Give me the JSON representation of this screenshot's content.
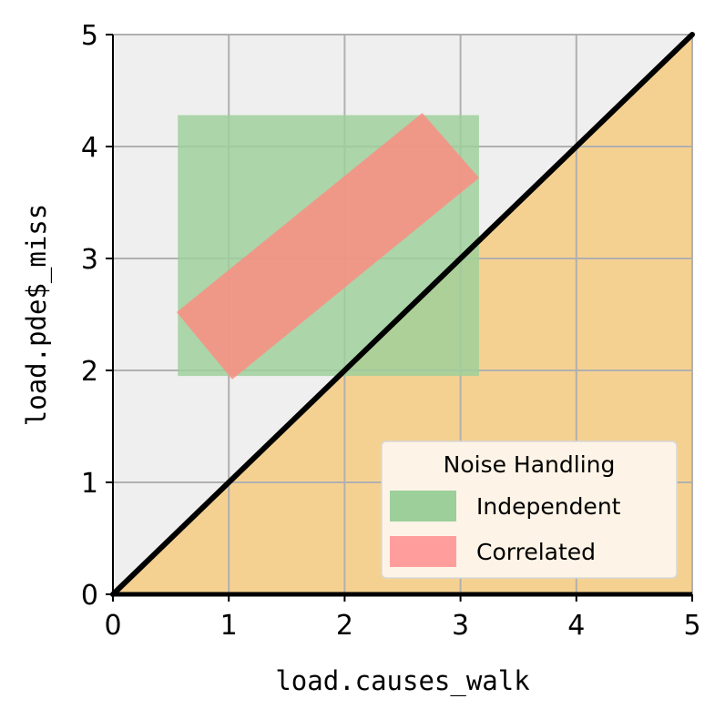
{
  "chart_data": {
    "type": "scatter",
    "title": "",
    "xlabel": "load.causes_walk",
    "ylabel": "load.pde$_miss",
    "xlim": [
      0,
      5
    ],
    "ylim": [
      0,
      5
    ],
    "xticks": [
      "0",
      "1",
      "2",
      "3",
      "4",
      "5"
    ],
    "yticks": [
      "0",
      "1",
      "2",
      "3",
      "4",
      "5"
    ],
    "grid": true,
    "background_color": "#efefef",
    "below_diagonal_color": "#f5d191",
    "diagonal": {
      "from": [
        0,
        0
      ],
      "to": [
        5,
        5
      ],
      "color": "#000000"
    },
    "regions": [
      {
        "name": "Independent",
        "shape": "rectangle",
        "color": "#9dcf9a",
        "corners": [
          [
            0.56,
            1.95
          ],
          [
            3.16,
            1.95
          ],
          [
            3.16,
            4.28
          ],
          [
            0.56,
            4.28
          ]
        ]
      },
      {
        "name": "Correlated",
        "shape": "rotated-rectangle",
        "color": "#ff8a80",
        "corners": [
          [
            0.55,
            2.52
          ],
          [
            1.03,
            1.92
          ],
          [
            3.16,
            3.72
          ],
          [
            2.67,
            4.3
          ]
        ]
      }
    ],
    "legend": {
      "title": "Noise Handling",
      "placement": "lower-right",
      "entries": [
        {
          "label": "Independent",
          "color": "#9dcf9a"
        },
        {
          "label": "Correlated",
          "color": "#ff9d9d"
        }
      ]
    }
  }
}
